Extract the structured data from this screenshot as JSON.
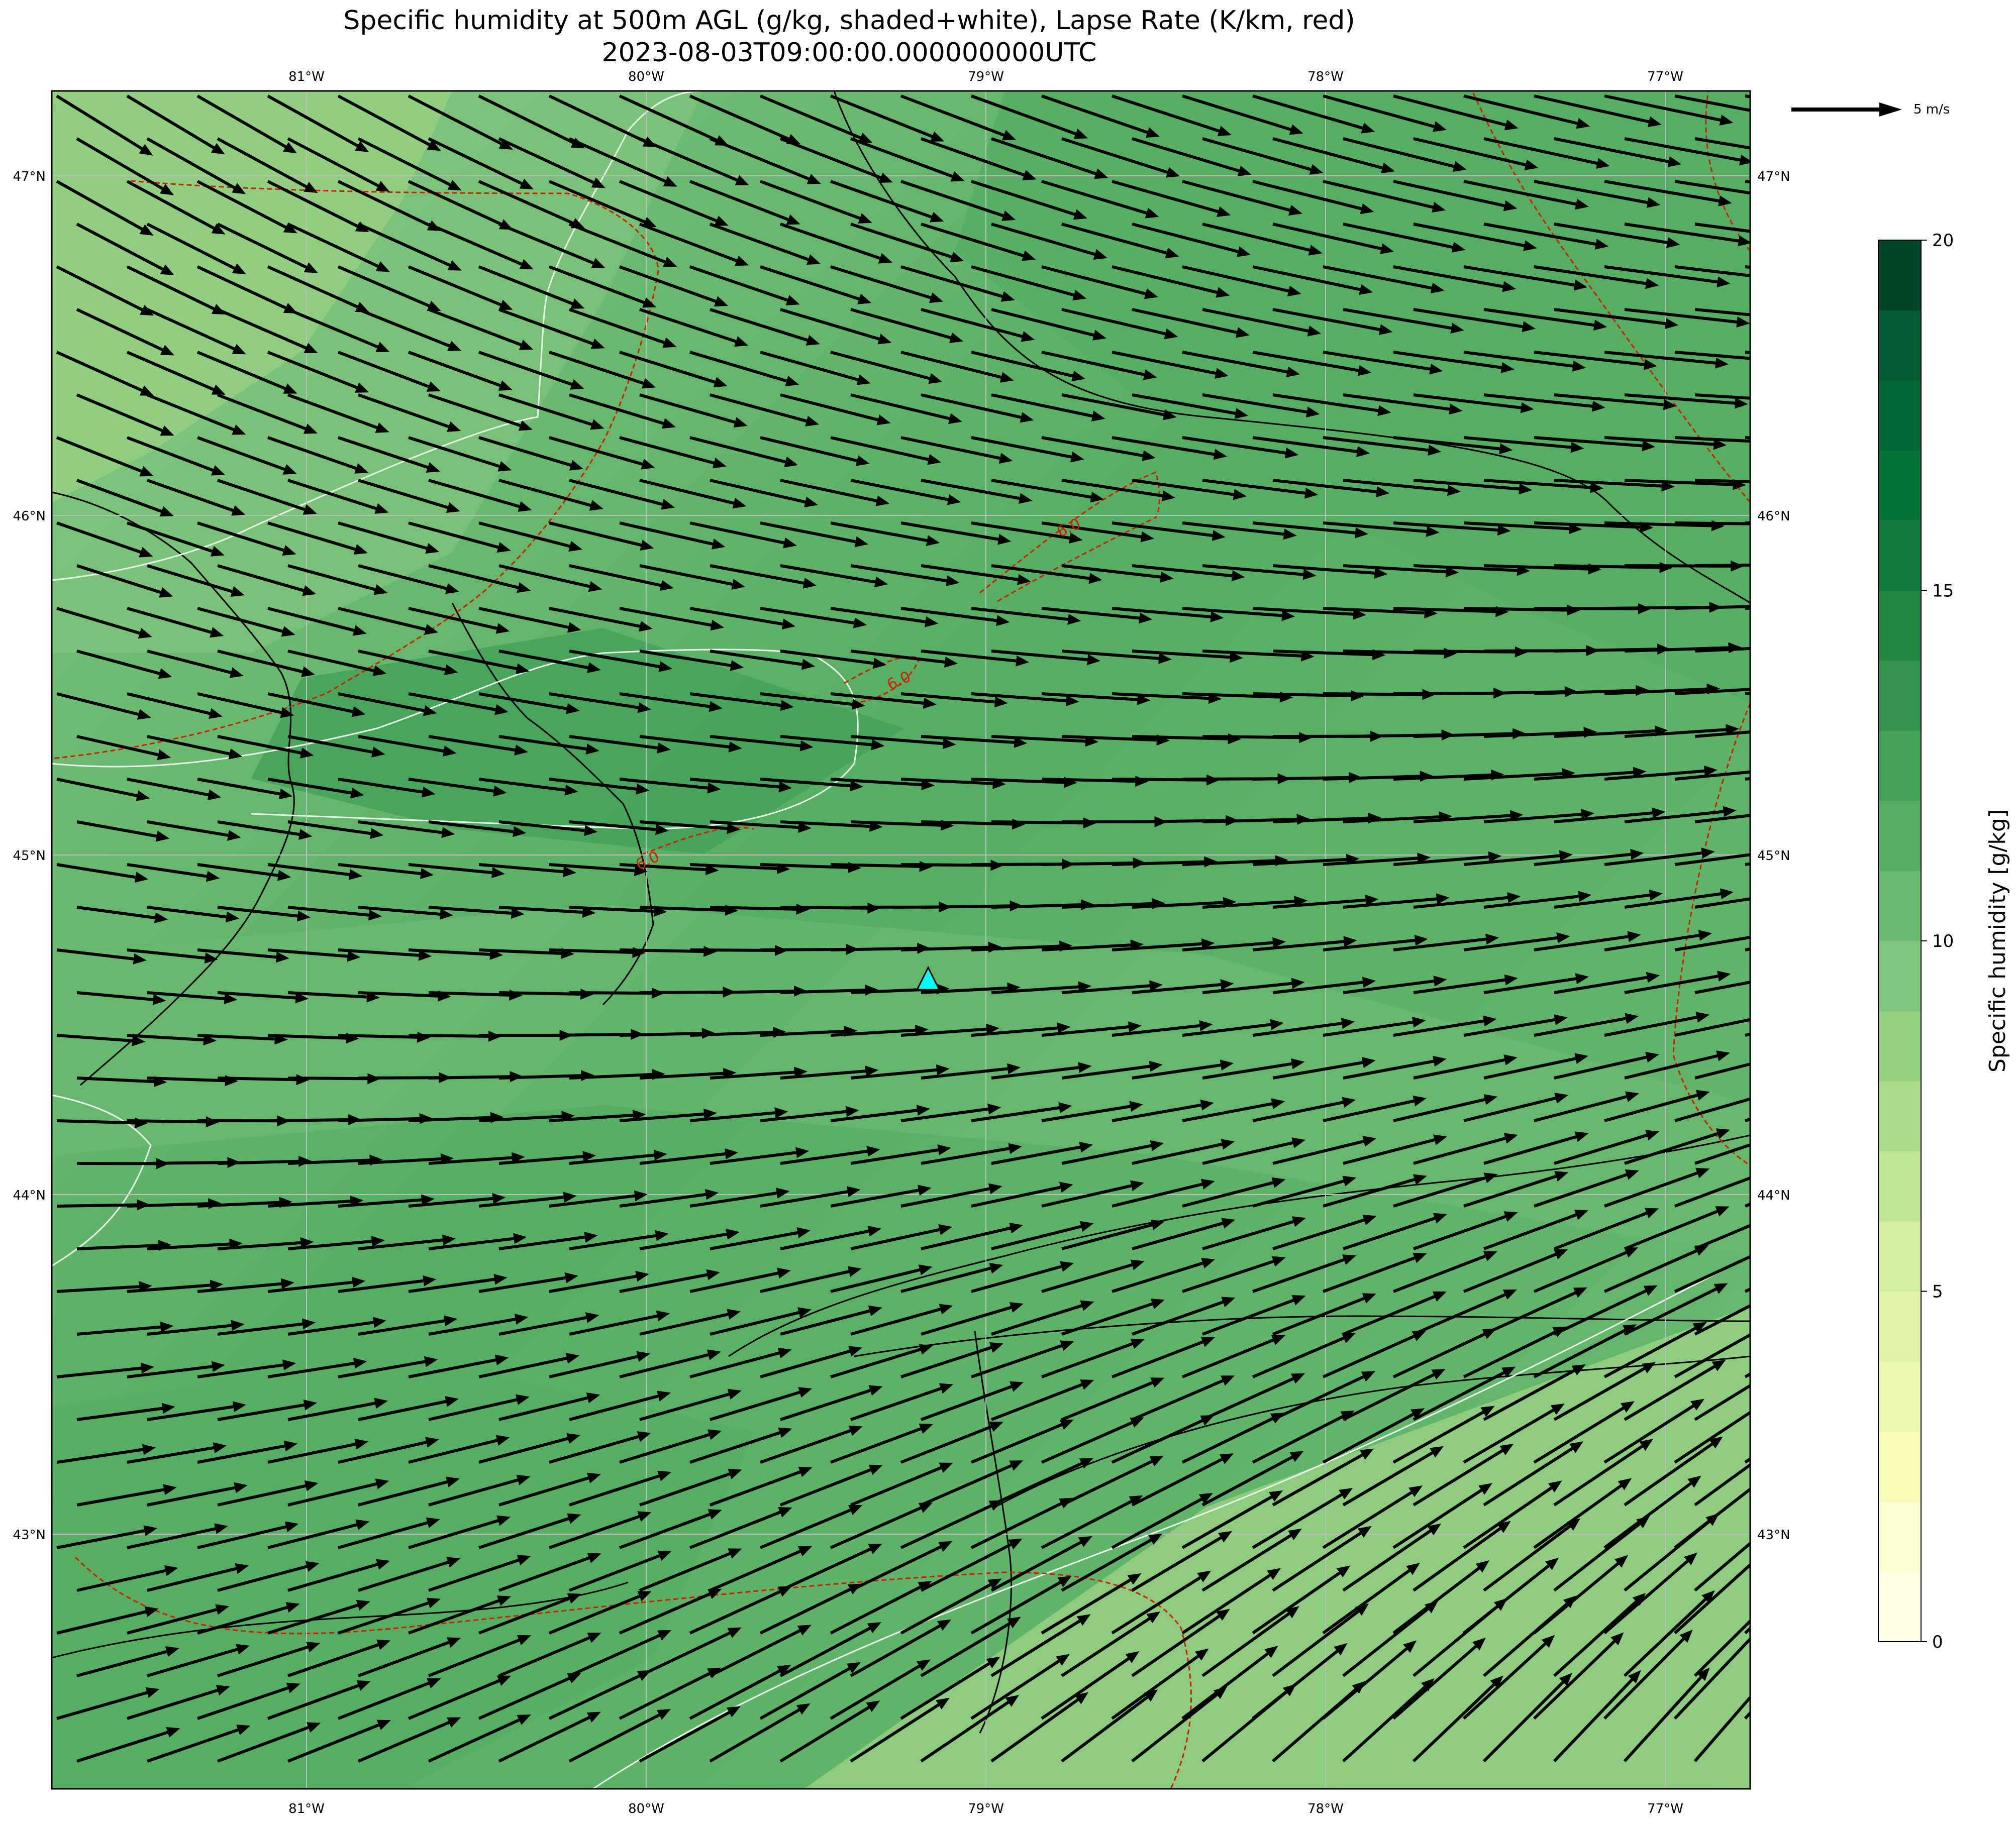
{
  "title": {
    "line1": "Specific humidity at 500m AGL (g/kg, shaded+white), Lapse Rate (K/km, red)",
    "line2": "2023-08-03T09:00:00.000000000UTC"
  },
  "map": {
    "lon_range": [
      -81.75,
      -76.75
    ],
    "lat_range": [
      42.25,
      47.25
    ],
    "lon_ticks": [
      {
        "value": -81,
        "label": "81°W"
      },
      {
        "value": -80,
        "label": "80°W"
      },
      {
        "value": -79,
        "label": "79°W"
      },
      {
        "value": -78,
        "label": "78°W"
      },
      {
        "value": -77,
        "label": "77°W"
      }
    ],
    "lat_ticks": [
      {
        "value": 47,
        "label": "47°N"
      },
      {
        "value": 46,
        "label": "46°N"
      },
      {
        "value": 45,
        "label": "45°N"
      },
      {
        "value": 44,
        "label": "44°N"
      },
      {
        "value": 43,
        "label": "43°N"
      }
    ],
    "gridlines": true,
    "contour_labels": [
      {
        "text": "6.0",
        "lon": -78.75,
        "lat": 45.95
      },
      {
        "text": "6.0",
        "lon": -79.25,
        "lat": 45.5
      },
      {
        "text": "6.0",
        "lon": -79.99,
        "lat": 44.97
      }
    ],
    "marker": {
      "lon": -79.17,
      "lat": 44.63,
      "shape": "triangle",
      "color": "#00ffff"
    }
  },
  "quiver_key": {
    "label": "5 m/s",
    "reference_speed": 5
  },
  "colorbar": {
    "label": "Specific humidity [g/kg]",
    "min": 0,
    "max": 20,
    "ticks": [
      {
        "value": 0,
        "label": "0"
      },
      {
        "value": 5,
        "label": "5"
      },
      {
        "value": 10,
        "label": "10"
      },
      {
        "value": 15,
        "label": "15"
      },
      {
        "value": 20,
        "label": "20"
      }
    ],
    "colors": [
      "#ffffe5",
      "#fbfdd2",
      "#f7fcb9",
      "#ebf7b1",
      "#e0f3a9",
      "#d1ed9f",
      "#bfe595",
      "#acdc8b",
      "#95d083",
      "#7fc57b",
      "#6aba6f",
      "#55ae63",
      "#44a259",
      "#34944f",
      "#238542",
      "#137a3f",
      "#047338",
      "#006636",
      "#005a32",
      "#004529"
    ]
  },
  "colors": {
    "land_moist": "#55ae63",
    "land_mid": "#6aba6f",
    "land_dry": "#95d083",
    "marker": "#00ffff",
    "lapse_contour": "#cc2200"
  }
}
